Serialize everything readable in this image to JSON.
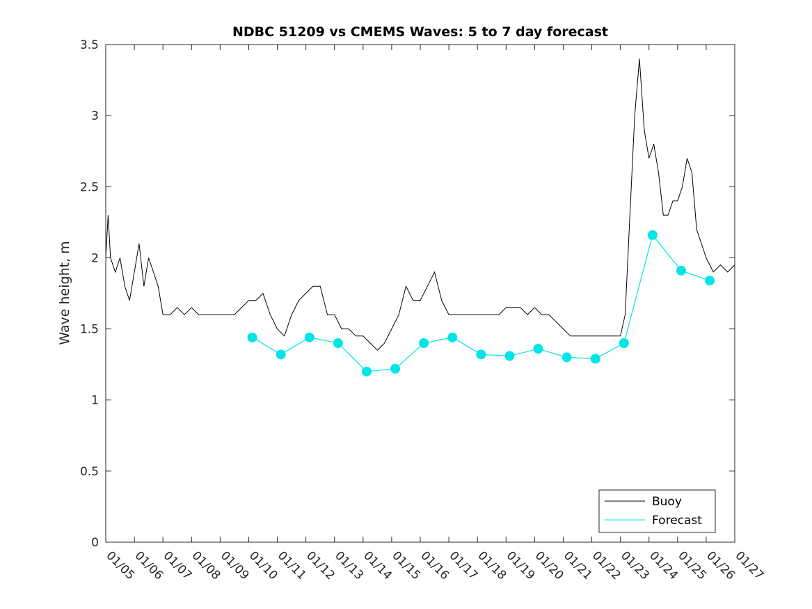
{
  "chart_data": {
    "type": "line",
    "title": "NDBC 51209 vs CMEMS Waves: 5 to 7 day forecast",
    "xlabel": "",
    "ylabel": "Wave height, m",
    "xlim": [
      "01/05",
      "01/27"
    ],
    "ylim": [
      0,
      3.5
    ],
    "x_ticks": [
      "01/05",
      "01/06",
      "01/07",
      "01/08",
      "01/09",
      "01/10",
      "01/11",
      "01/12",
      "01/13",
      "01/14",
      "01/15",
      "01/16",
      "01/17",
      "01/18",
      "01/19",
      "01/20",
      "01/21",
      "01/22",
      "01/23",
      "01/24",
      "01/25",
      "01/26",
      "01/27"
    ],
    "y_ticks": [
      "0",
      "0.5",
      "1",
      "1.5",
      "2",
      "2.5",
      "3",
      "3.5"
    ],
    "grid": false,
    "legend_position": "bottom-right",
    "series": [
      {
        "name": "Buoy",
        "color": "#000000",
        "x": [
          "01/05 00:00",
          "01/05 02:00",
          "01/05 04:00",
          "01/05 08:00",
          "01/05 12:00",
          "01/05 16:00",
          "01/05 20:00",
          "01/06 00:00",
          "01/06 04:00",
          "01/06 08:00",
          "01/06 12:00",
          "01/06 16:00",
          "01/06 20:00",
          "01/07 00:00",
          "01/07 06:00",
          "01/07 12:00",
          "01/07 18:00",
          "01/08 00:00",
          "01/08 06:00",
          "01/08 12:00",
          "01/08 18:00",
          "01/09 00:00",
          "01/09 06:00",
          "01/09 12:00",
          "01/09 18:00",
          "01/10 00:00",
          "01/10 06:00",
          "01/10 12:00",
          "01/10 18:00",
          "01/11 00:00",
          "01/11 06:00",
          "01/11 12:00",
          "01/11 18:00",
          "01/12 00:00",
          "01/12 06:00",
          "01/12 12:00",
          "01/12 18:00",
          "01/13 00:00",
          "01/13 06:00",
          "01/13 12:00",
          "01/13 18:00",
          "01/14 00:00",
          "01/14 06:00",
          "01/14 12:00",
          "01/14 18:00",
          "01/15 00:00",
          "01/15 06:00",
          "01/15 12:00",
          "01/15 18:00",
          "01/16 00:00",
          "01/16 06:00",
          "01/16 12:00",
          "01/16 18:00",
          "01/17 00:00",
          "01/17 06:00",
          "01/17 12:00",
          "01/17 18:00",
          "01/18 00:00",
          "01/18 06:00",
          "01/18 12:00",
          "01/18 18:00",
          "01/19 00:00",
          "01/19 06:00",
          "01/19 12:00",
          "01/19 18:00",
          "01/20 00:00",
          "01/20 06:00",
          "01/20 12:00",
          "01/20 18:00",
          "01/21 00:00",
          "01/21 06:00",
          "01/21 12:00",
          "01/21 18:00",
          "01/22 00:00",
          "01/22 06:00",
          "01/22 12:00",
          "01/22 18:00",
          "01/23 00:00",
          "01/23 04:00",
          "01/23 08:00",
          "01/23 12:00",
          "01/23 16:00",
          "01/23 20:00",
          "01/24 00:00",
          "01/24 04:00",
          "01/24 08:00",
          "01/24 12:00",
          "01/24 16:00",
          "01/24 20:00",
          "01/25 00:00",
          "01/25 04:00",
          "01/25 08:00",
          "01/25 12:00",
          "01/25 16:00",
          "01/25 20:00",
          "01/26 00:00",
          "01/26 06:00",
          "01/26 12:00",
          "01/26 18:00",
          "01/27 00:00"
        ],
        "y": [
          2.0,
          2.3,
          2.0,
          1.9,
          2.0,
          1.8,
          1.7,
          1.9,
          2.1,
          1.8,
          2.0,
          1.9,
          1.8,
          1.6,
          1.6,
          1.65,
          1.6,
          1.65,
          1.6,
          1.6,
          1.6,
          1.6,
          1.6,
          1.6,
          1.65,
          1.7,
          1.7,
          1.75,
          1.6,
          1.5,
          1.45,
          1.6,
          1.7,
          1.75,
          1.8,
          1.8,
          1.6,
          1.6,
          1.5,
          1.5,
          1.45,
          1.45,
          1.4,
          1.35,
          1.4,
          1.5,
          1.6,
          1.8,
          1.7,
          1.7,
          1.8,
          1.9,
          1.7,
          1.6,
          1.6,
          1.6,
          1.6,
          1.6,
          1.6,
          1.6,
          1.6,
          1.65,
          1.65,
          1.65,
          1.6,
          1.65,
          1.6,
          1.6,
          1.55,
          1.5,
          1.45,
          1.45,
          1.45,
          1.45,
          1.45,
          1.45,
          1.45,
          1.45,
          1.6,
          2.3,
          3.0,
          3.4,
          2.9,
          2.7,
          2.8,
          2.6,
          2.3,
          2.3,
          2.4,
          2.4,
          2.5,
          2.7,
          2.6,
          2.2,
          2.1,
          2.0,
          1.9,
          1.95,
          1.9,
          1.95
        ]
      },
      {
        "name": "Forecast",
        "color": "#00e5e5",
        "x": [
          "01/10 03:00",
          "01/11 03:00",
          "01/12 03:00",
          "01/13 03:00",
          "01/14 03:00",
          "01/15 03:00",
          "01/16 03:00",
          "01/17 03:00",
          "01/18 03:00",
          "01/19 03:00",
          "01/20 03:00",
          "01/21 03:00",
          "01/22 03:00",
          "01/23 03:00",
          "01/24 03:00",
          "01/25 03:00",
          "01/26 03:00"
        ],
        "y": [
          1.44,
          1.32,
          1.44,
          1.4,
          1.2,
          1.22,
          1.4,
          1.44,
          1.32,
          1.31,
          1.36,
          1.3,
          1.29,
          1.4,
          2.16,
          1.91,
          1.84
        ],
        "markers": true
      }
    ]
  }
}
